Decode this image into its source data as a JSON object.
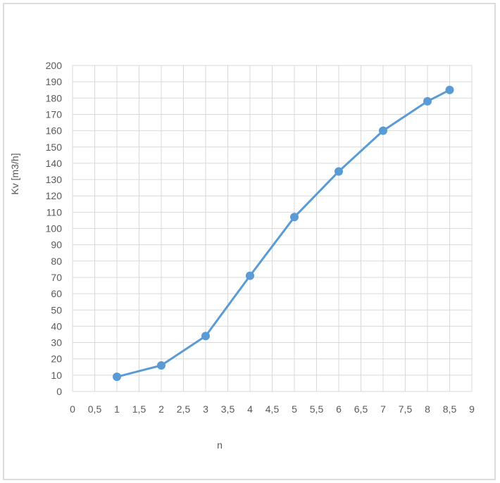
{
  "chart_data": {
    "type": "line",
    "title": "",
    "xlabel": "n",
    "ylabel": "Kv [m3/h]",
    "xlim": [
      0,
      9
    ],
    "ylim": [
      0,
      200
    ],
    "x_ticks": [
      "0",
      "0,5",
      "1",
      "1,5",
      "2",
      "2,5",
      "3",
      "3,5",
      "4",
      "4,5",
      "5",
      "5,5",
      "6",
      "6,5",
      "7",
      "7,5",
      "8",
      "8,5",
      "9"
    ],
    "y_ticks": [
      "0",
      "10",
      "20",
      "30",
      "40",
      "50",
      "60",
      "70",
      "80",
      "90",
      "100",
      "110",
      "120",
      "130",
      "140",
      "150",
      "160",
      "170",
      "180",
      "190",
      "200"
    ],
    "grid": true,
    "legend": "none",
    "series": [
      {
        "x": [
          1,
          2,
          3,
          4,
          5,
          6,
          7,
          8,
          8.5
        ],
        "values": [
          9,
          16,
          34,
          71,
          107,
          135,
          160,
          178,
          185
        ],
        "color": "#5b9bd5"
      }
    ]
  }
}
